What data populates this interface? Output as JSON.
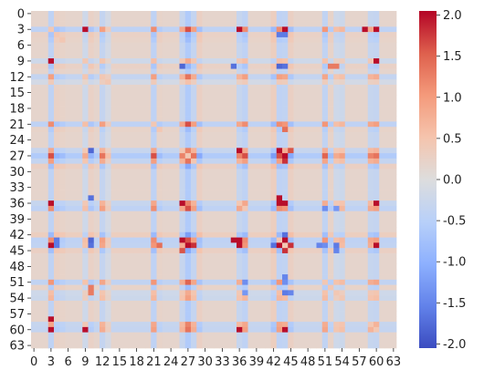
{
  "chart_data": {
    "type": "heatmap",
    "n": 64,
    "x_tick_labels": [
      "0",
      "3",
      "6",
      "9",
      "12",
      "15",
      "18",
      "21",
      "24",
      "27",
      "30",
      "33",
      "36",
      "39",
      "42",
      "45",
      "48",
      "51",
      "54",
      "57",
      "60",
      "63"
    ],
    "y_tick_labels": [
      "0",
      "3",
      "6",
      "9",
      "12",
      "15",
      "18",
      "21",
      "24",
      "27",
      "30",
      "33",
      "36",
      "39",
      "42",
      "45",
      "48",
      "51",
      "54",
      "57",
      "60",
      "63"
    ],
    "vmin": -2.05,
    "vmax": 2.05,
    "colormap": "coolwarm",
    "colorbar_ticks": [
      "2.0",
      "1.5",
      "1.0",
      "0.5",
      "0.0",
      "-0.5",
      "-1.0",
      "-1.5",
      "-2.0"
    ],
    "colorbar_tick_values": [
      2.0,
      1.5,
      1.0,
      0.5,
      0.0,
      -0.5,
      -1.0,
      -1.5,
      -2.0
    ],
    "row_scores": {
      "3": -0.6,
      "4": 0.35,
      "5": 0.3,
      "9": -0.3,
      "10": 0.35,
      "12": -0.5,
      "13": -0.2,
      "21": -0.6,
      "22": 0.3,
      "26": -0.45,
      "27": -0.85,
      "28": -0.5,
      "29": 0.4,
      "36": -0.45,
      "37": -0.6,
      "42": 0.45,
      "43": -0.6,
      "44": -0.55,
      "45": 0.4,
      "51": -0.55,
      "52": 0.3,
      "53": -0.3,
      "54": -0.35,
      "59": -0.45,
      "60": -0.5
    },
    "default_score": 0.22,
    "strong_cells": [
      {
        "row": 3,
        "col": 9,
        "value": 2.0
      },
      {
        "row": 3,
        "col": 36,
        "value": 2.0
      },
      {
        "row": 3,
        "col": 44,
        "value": 2.0
      },
      {
        "row": 3,
        "col": 58,
        "value": 2.0
      },
      {
        "row": 60,
        "col": 3,
        "value": 2.0
      },
      {
        "row": 60,
        "col": 9,
        "value": 2.0
      },
      {
        "row": 60,
        "col": 36,
        "value": 2.0
      },
      {
        "row": 60,
        "col": 44,
        "value": 2.0
      },
      {
        "row": 36,
        "col": 26,
        "value": 2.0
      },
      {
        "row": 36,
        "col": 43,
        "value": 2.0
      },
      {
        "row": 36,
        "col": 44,
        "value": 2.0
      },
      {
        "row": 10,
        "col": 26,
        "value": -1.8
      },
      {
        "row": 10,
        "col": 35,
        "value": -1.7
      },
      {
        "row": 10,
        "col": 43,
        "value": -1.8
      },
      {
        "row": 10,
        "col": 44,
        "value": -1.7
      },
      {
        "row": 43,
        "col": 26,
        "value": 2.0
      },
      {
        "row": 44,
        "col": 27,
        "value": 2.0
      },
      {
        "row": 43,
        "col": 35,
        "value": 2.0
      },
      {
        "row": 43,
        "col": 44,
        "value": 2.0
      },
      {
        "row": 44,
        "col": 45,
        "value": 1.8
      },
      {
        "row": 28,
        "col": 44,
        "value": 1.8
      },
      {
        "row": 26,
        "col": 45,
        "value": 1.6
      },
      {
        "row": 22,
        "col": 44,
        "value": 1.4
      },
      {
        "row": 4,
        "col": 43,
        "value": -1.6
      },
      {
        "row": 4,
        "col": 44,
        "value": -1.6
      },
      {
        "row": 53,
        "col": 44,
        "value": -1.6
      },
      {
        "row": 53,
        "col": 45,
        "value": -1.5
      },
      {
        "row": 44,
        "col": 42,
        "value": -1.7
      },
      {
        "row": 44,
        "col": 50,
        "value": -1.5
      },
      {
        "row": 44,
        "col": 51,
        "value": -1.4
      },
      {
        "row": 10,
        "col": 52,
        "value": 1.3
      },
      {
        "row": 10,
        "col": 53,
        "value": 1.3
      },
      {
        "row": 37,
        "col": 51,
        "value": -1.4
      },
      {
        "row": 37,
        "col": 53,
        "value": -1.3
      }
    ]
  }
}
